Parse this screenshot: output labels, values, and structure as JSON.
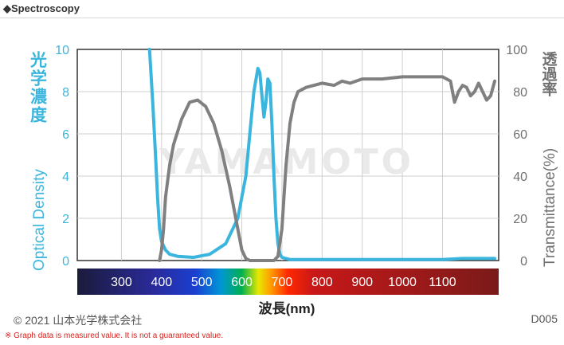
{
  "header": {
    "title": "◆Spectroscopy"
  },
  "footer": {
    "copyright": "© 2021 山本光学株式会社",
    "code": "D005",
    "note": "※ Graph data is measured value. It is not a guaranteed value."
  },
  "watermark": "YAMAMOTO",
  "chart_data": {
    "type": "line",
    "xlabel": "波長(nm)",
    "xlim": [
      190,
      1240
    ],
    "x_ticks": [
      "300",
      "400",
      "500",
      "600",
      "700",
      "800",
      "900",
      "1000",
      "1100"
    ],
    "x_tick_values": [
      300,
      400,
      500,
      600,
      700,
      800,
      900,
      1000,
      1100
    ],
    "y_left": {
      "label": "Optical Density",
      "label_ja": "光学濃度",
      "ticks": [
        "0",
        "2",
        "4",
        "6",
        "8",
        "10"
      ],
      "lim": [
        0,
        10
      ],
      "color": "#3ab6de"
    },
    "y_right": {
      "label": "Transmittance(%)",
      "label_ja": "透過率",
      "ticks": [
        "0",
        "20",
        "40",
        "60",
        "80",
        "100"
      ],
      "lim": [
        0,
        100
      ],
      "color": "#707070"
    },
    "series": [
      {
        "axis": "left",
        "color": "#3ab6de",
        "x": [
          370,
          378,
          385,
          390,
          395,
          400,
          410,
          420,
          440,
          480,
          520,
          560,
          590,
          610,
          620,
          630,
          640,
          645,
          650,
          655,
          660,
          665,
          670,
          675,
          680,
          685,
          690,
          695,
          700,
          710,
          720,
          750,
          800,
          900,
          1000,
          1100,
          1150,
          1200,
          1230
        ],
        "y": [
          10,
          7.5,
          5,
          3,
          1.5,
          0.9,
          0.5,
          0.3,
          0.2,
          0.15,
          0.3,
          0.8,
          2,
          4,
          6,
          8,
          9.1,
          8.9,
          7.8,
          6.8,
          7.5,
          8.6,
          8.4,
          6.5,
          4,
          2,
          0.8,
          0.3,
          0.15,
          0.1,
          0.05,
          0.05,
          0.05,
          0.05,
          0.05,
          0.05,
          0.1,
          0.1,
          0.1
        ]
      },
      {
        "axis": "right",
        "color": "#808080",
        "x": [
          395,
          400,
          405,
          410,
          420,
          430,
          450,
          470,
          490,
          510,
          530,
          550,
          570,
          590,
          600,
          610,
          620,
          630,
          640,
          650,
          660,
          670,
          680,
          690,
          700,
          710,
          720,
          730,
          740,
          760,
          780,
          800,
          830,
          850,
          870,
          900,
          950,
          1000,
          1050,
          1100,
          1120,
          1130,
          1140,
          1150,
          1160,
          1170,
          1180,
          1190,
          1200,
          1210,
          1220,
          1230
        ],
        "y": [
          0,
          5,
          15,
          30,
          45,
          55,
          67,
          75,
          76,
          73,
          65,
          52,
          35,
          15,
          5,
          1,
          0,
          0,
          0,
          0,
          0,
          0,
          0,
          2,
          15,
          45,
          65,
          75,
          80,
          82,
          83,
          84,
          83,
          85,
          84,
          86,
          86,
          87,
          87,
          87,
          85,
          75,
          80,
          83,
          82,
          78,
          80,
          84,
          80,
          76,
          78,
          85
        ]
      }
    ]
  }
}
